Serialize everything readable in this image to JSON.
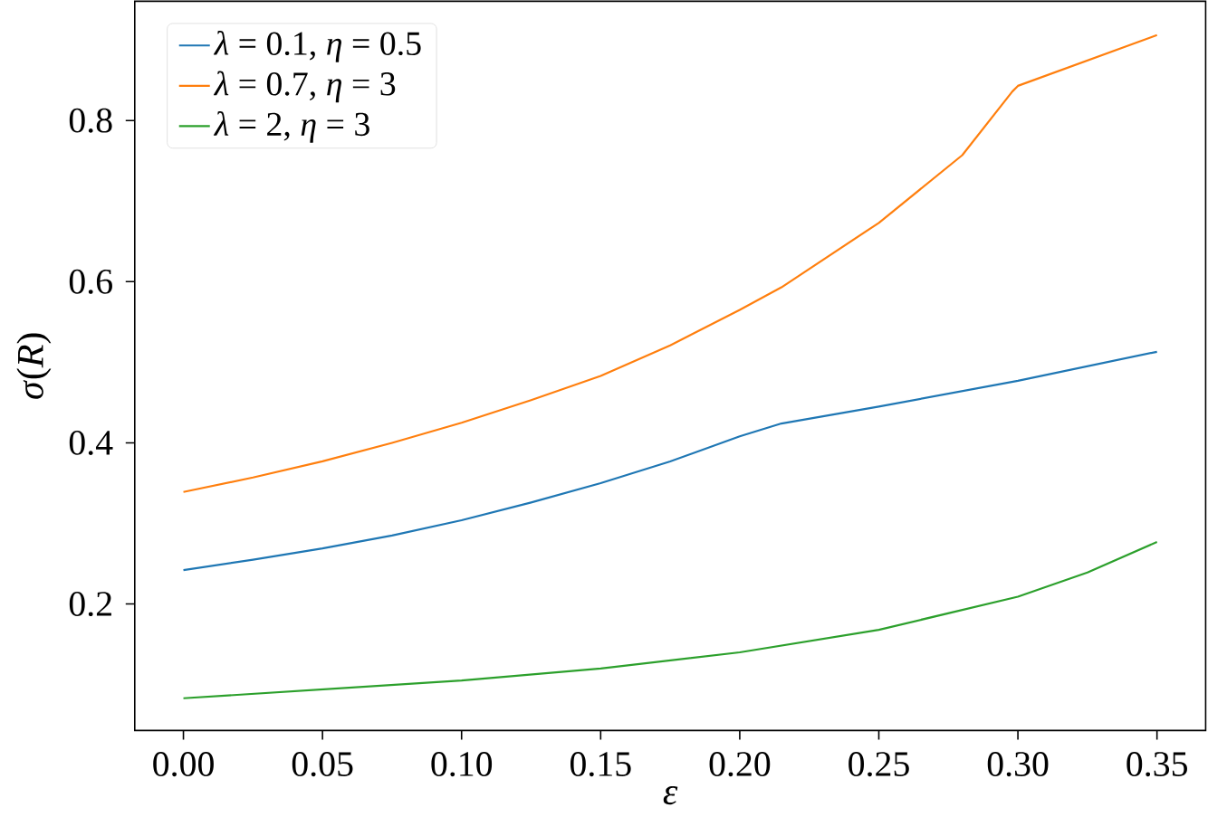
{
  "chart_data": {
    "type": "line",
    "xlabel": "*ε*",
    "ylabel": "*σ*(*R*)",
    "xlim": [
      -0.0175,
      0.3675
    ],
    "ylim": [
      0.043,
      0.948
    ],
    "xticks": [
      {
        "value": 0,
        "label": "0.00"
      },
      {
        "value": 0.05,
        "label": "0.05"
      },
      {
        "value": 0.1,
        "label": "0.10"
      },
      {
        "value": 0.15,
        "label": "0.15"
      },
      {
        "value": 0.2,
        "label": "0.20"
      },
      {
        "value": 0.25,
        "label": "0.25"
      },
      {
        "value": 0.3,
        "label": "0.30"
      },
      {
        "value": 0.35,
        "label": "0.35"
      }
    ],
    "yticks": [
      0.2,
      0.4,
      0.6,
      0.8
    ],
    "legend": "top left",
    "grid": false,
    "marker": "none",
    "line_style": "solid",
    "series": [
      {
        "name": "*λ* = 0.1, *η* = 0.5",
        "color": "#1f77b4",
        "x": [
          0,
          0.025,
          0.05,
          0.075,
          0.1,
          0.125,
          0.15,
          0.175,
          0.2,
          0.215,
          0.25,
          0.3,
          0.35
        ],
        "values": [
          0.242,
          0.255,
          0.269,
          0.285,
          0.304,
          0.326,
          0.35,
          0.377,
          0.408,
          0.424,
          0.445,
          0.477,
          0.513
        ]
      },
      {
        "name": "*λ* = 0.7, *η* = 3",
        "color": "#ff7f0e",
        "x": [
          0,
          0.025,
          0.05,
          0.075,
          0.1,
          0.125,
          0.15,
          0.175,
          0.2,
          0.215,
          0.25,
          0.28,
          0.298,
          0.3,
          0.35
        ],
        "values": [
          0.339,
          0.357,
          0.377,
          0.4,
          0.425,
          0.453,
          0.483,
          0.521,
          0.565,
          0.593,
          0.673,
          0.757,
          0.836,
          0.843,
          0.906
        ]
      },
      {
        "name": "*λ* = 2, *η* = 3",
        "color": "#2ca02c",
        "x": [
          0,
          0.05,
          0.1,
          0.15,
          0.2,
          0.25,
          0.3,
          0.325,
          0.35
        ],
        "values": [
          0.083,
          0.094,
          0.105,
          0.12,
          0.14,
          0.168,
          0.209,
          0.239,
          0.277
        ]
      }
    ]
  }
}
